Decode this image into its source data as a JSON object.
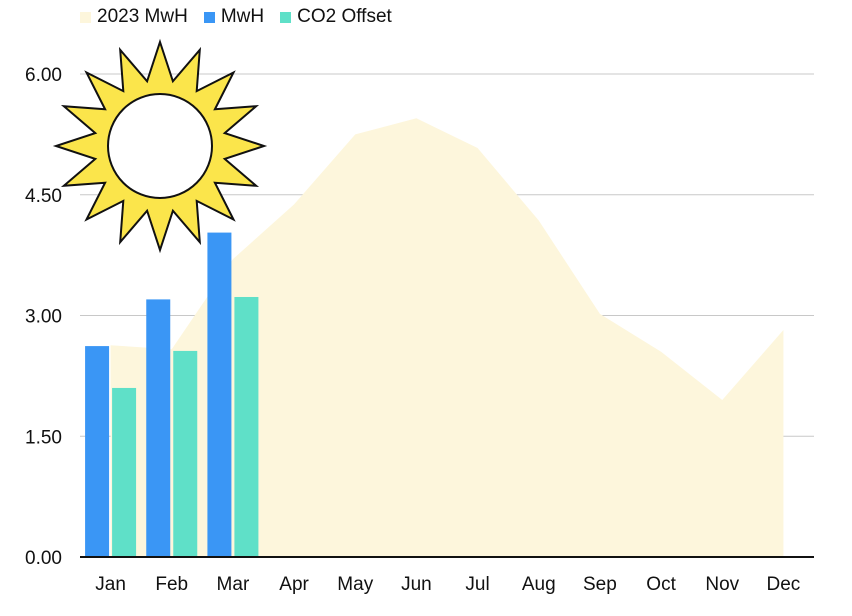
{
  "chart_data": {
    "type": "bar",
    "categories": [
      "Jan",
      "Feb",
      "Mar",
      "Apr",
      "May",
      "Jun",
      "Jul",
      "Aug",
      "Sep",
      "Oct",
      "Nov",
      "Dec"
    ],
    "ylim": [
      0,
      6
    ],
    "yticks": [
      "0.00",
      "1.50",
      "3.00",
      "4.50",
      "6.00"
    ],
    "yticks_values": [
      0,
      1.5,
      3.0,
      4.5,
      6.0
    ],
    "grid": true,
    "legend_position": "top-left",
    "series": [
      {
        "name": "2023 MwH",
        "kind": "area",
        "color": "#fdf6dc",
        "values": [
          2.63,
          2.58,
          3.7,
          4.38,
          5.25,
          5.45,
          5.08,
          4.18,
          3.02,
          2.55,
          1.95,
          2.82
        ]
      },
      {
        "name": "MwH",
        "kind": "bar",
        "color": "#3a96f5",
        "values": [
          2.62,
          3.2,
          4.03,
          null,
          null,
          null,
          null,
          null,
          null,
          null,
          null,
          null
        ]
      },
      {
        "name": "CO2 Offset",
        "kind": "bar",
        "color": "#5fe0c8",
        "values": [
          2.1,
          2.56,
          3.23,
          null,
          null,
          null,
          null,
          null,
          null,
          null,
          null,
          null
        ]
      }
    ]
  },
  "decoration": {
    "icon": "sun-icon",
    "fill": "#fbe54b",
    "stroke": "#111111"
  }
}
